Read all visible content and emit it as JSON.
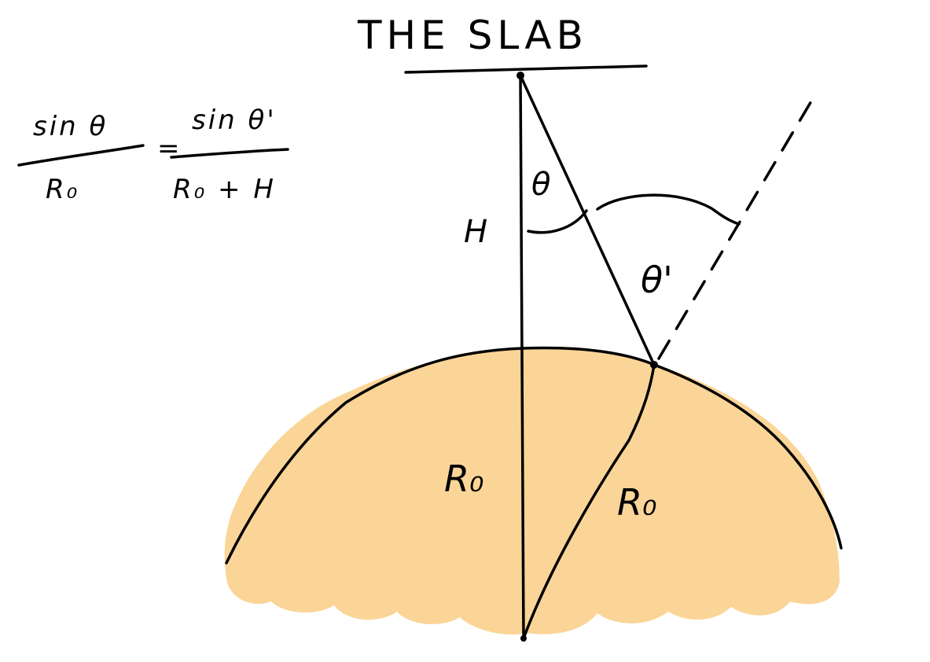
{
  "title": "THE SLAB",
  "formula": {
    "lhs_num": "sin θ",
    "lhs_den": "R₀",
    "equals": "=",
    "rhs_num": "sin θ'",
    "rhs_den": "R₀ + H"
  },
  "labels": {
    "height": "H",
    "angle": "θ",
    "angle_prime": "θ'",
    "radius_left": "R₀",
    "radius_right": "R₀"
  },
  "colors": {
    "planet_fill": "#FAD597",
    "ink": "#000000",
    "background": "#FFFFFF"
  }
}
